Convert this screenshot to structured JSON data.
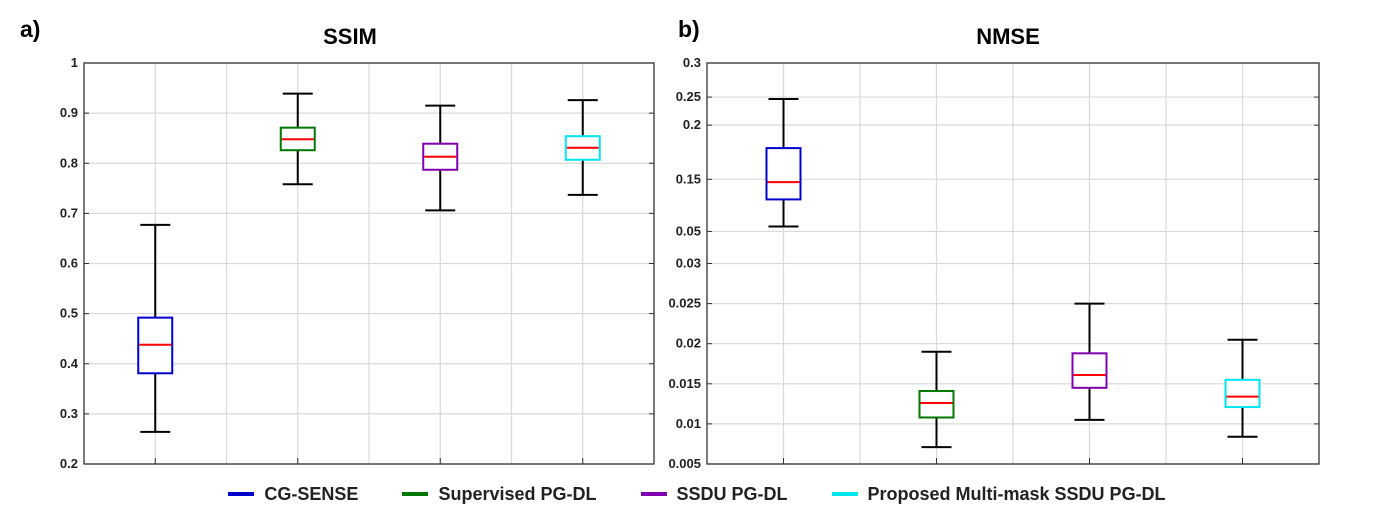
{
  "panels": [
    {
      "label": "a)"
    },
    {
      "label": "b)"
    }
  ],
  "legend": [
    {
      "label": "CG-SENSE",
      "color": "#0000cc"
    },
    {
      "label": "Supervised PG-DL",
      "color": "#007700"
    },
    {
      "label": "SSDU PG-DL",
      "color": "#8000b0"
    },
    {
      "label": "Proposed Multi-mask SSDU PG-DL",
      "color": "#00e5ee"
    }
  ],
  "chart_data": [
    {
      "type": "box",
      "title": "SSIM",
      "xlabel": "",
      "ylabel": "",
      "ylim": [
        0.2,
        1.0
      ],
      "yticks": [
        "0.2",
        "0.3",
        "0.4",
        "0.5",
        "0.6",
        "0.7",
        "0.8",
        "0.9",
        "1"
      ],
      "grid": true,
      "median_color": "#ff0000",
      "series": [
        {
          "name": "CG-SENSE",
          "color": "#0000cc",
          "whisker_low": 0.264,
          "q1": 0.381,
          "median": 0.438,
          "q3": 0.492,
          "whisker_high": 0.677
        },
        {
          "name": "Supervised PG-DL",
          "color": "#007700",
          "whisker_low": 0.758,
          "q1": 0.826,
          "median": 0.848,
          "q3": 0.871,
          "whisker_high": 0.939
        },
        {
          "name": "SSDU PG-DL",
          "color": "#8000b0",
          "whisker_low": 0.706,
          "q1": 0.787,
          "median": 0.813,
          "q3": 0.839,
          "whisker_high": 0.915
        },
        {
          "name": "Proposed Multi-mask SSDU PG-DL",
          "color": "#00e5ee",
          "whisker_low": 0.737,
          "q1": 0.807,
          "median": 0.831,
          "q3": 0.854,
          "whisker_high": 0.926
        }
      ]
    },
    {
      "type": "box",
      "title": "NMSE",
      "xlabel": "",
      "ylabel": "",
      "scale": "piecewise",
      "yticks": [
        "0.005",
        "0.01",
        "0.015",
        "0.02",
        "0.025",
        "0.03",
        "0.05",
        "0.15",
        "0.2",
        "0.25",
        "0.3"
      ],
      "grid": true,
      "median_color": "#ff0000",
      "series": [
        {
          "name": "CG-SENSE",
          "color": "#0000cc",
          "whisker_low": 0.0595,
          "q1": 0.1114,
          "median": 0.1446,
          "q3": 0.1788,
          "whisker_high": 0.2465
        },
        {
          "name": "Supervised PG-DL",
          "color": "#007700",
          "whisker_low": 0.0071,
          "q1": 0.0108,
          "median": 0.0126,
          "q3": 0.0141,
          "whisker_high": 0.019
        },
        {
          "name": "SSDU PG-DL",
          "color": "#8000b0",
          "whisker_low": 0.0105,
          "q1": 0.0145,
          "median": 0.0161,
          "q3": 0.0188,
          "whisker_high": 0.025
        },
        {
          "name": "Proposed Multi-mask SSDU PG-DL",
          "color": "#00e5ee",
          "whisker_low": 0.0084,
          "q1": 0.0121,
          "median": 0.0134,
          "q3": 0.0155,
          "whisker_high": 0.0205
        }
      ]
    }
  ]
}
